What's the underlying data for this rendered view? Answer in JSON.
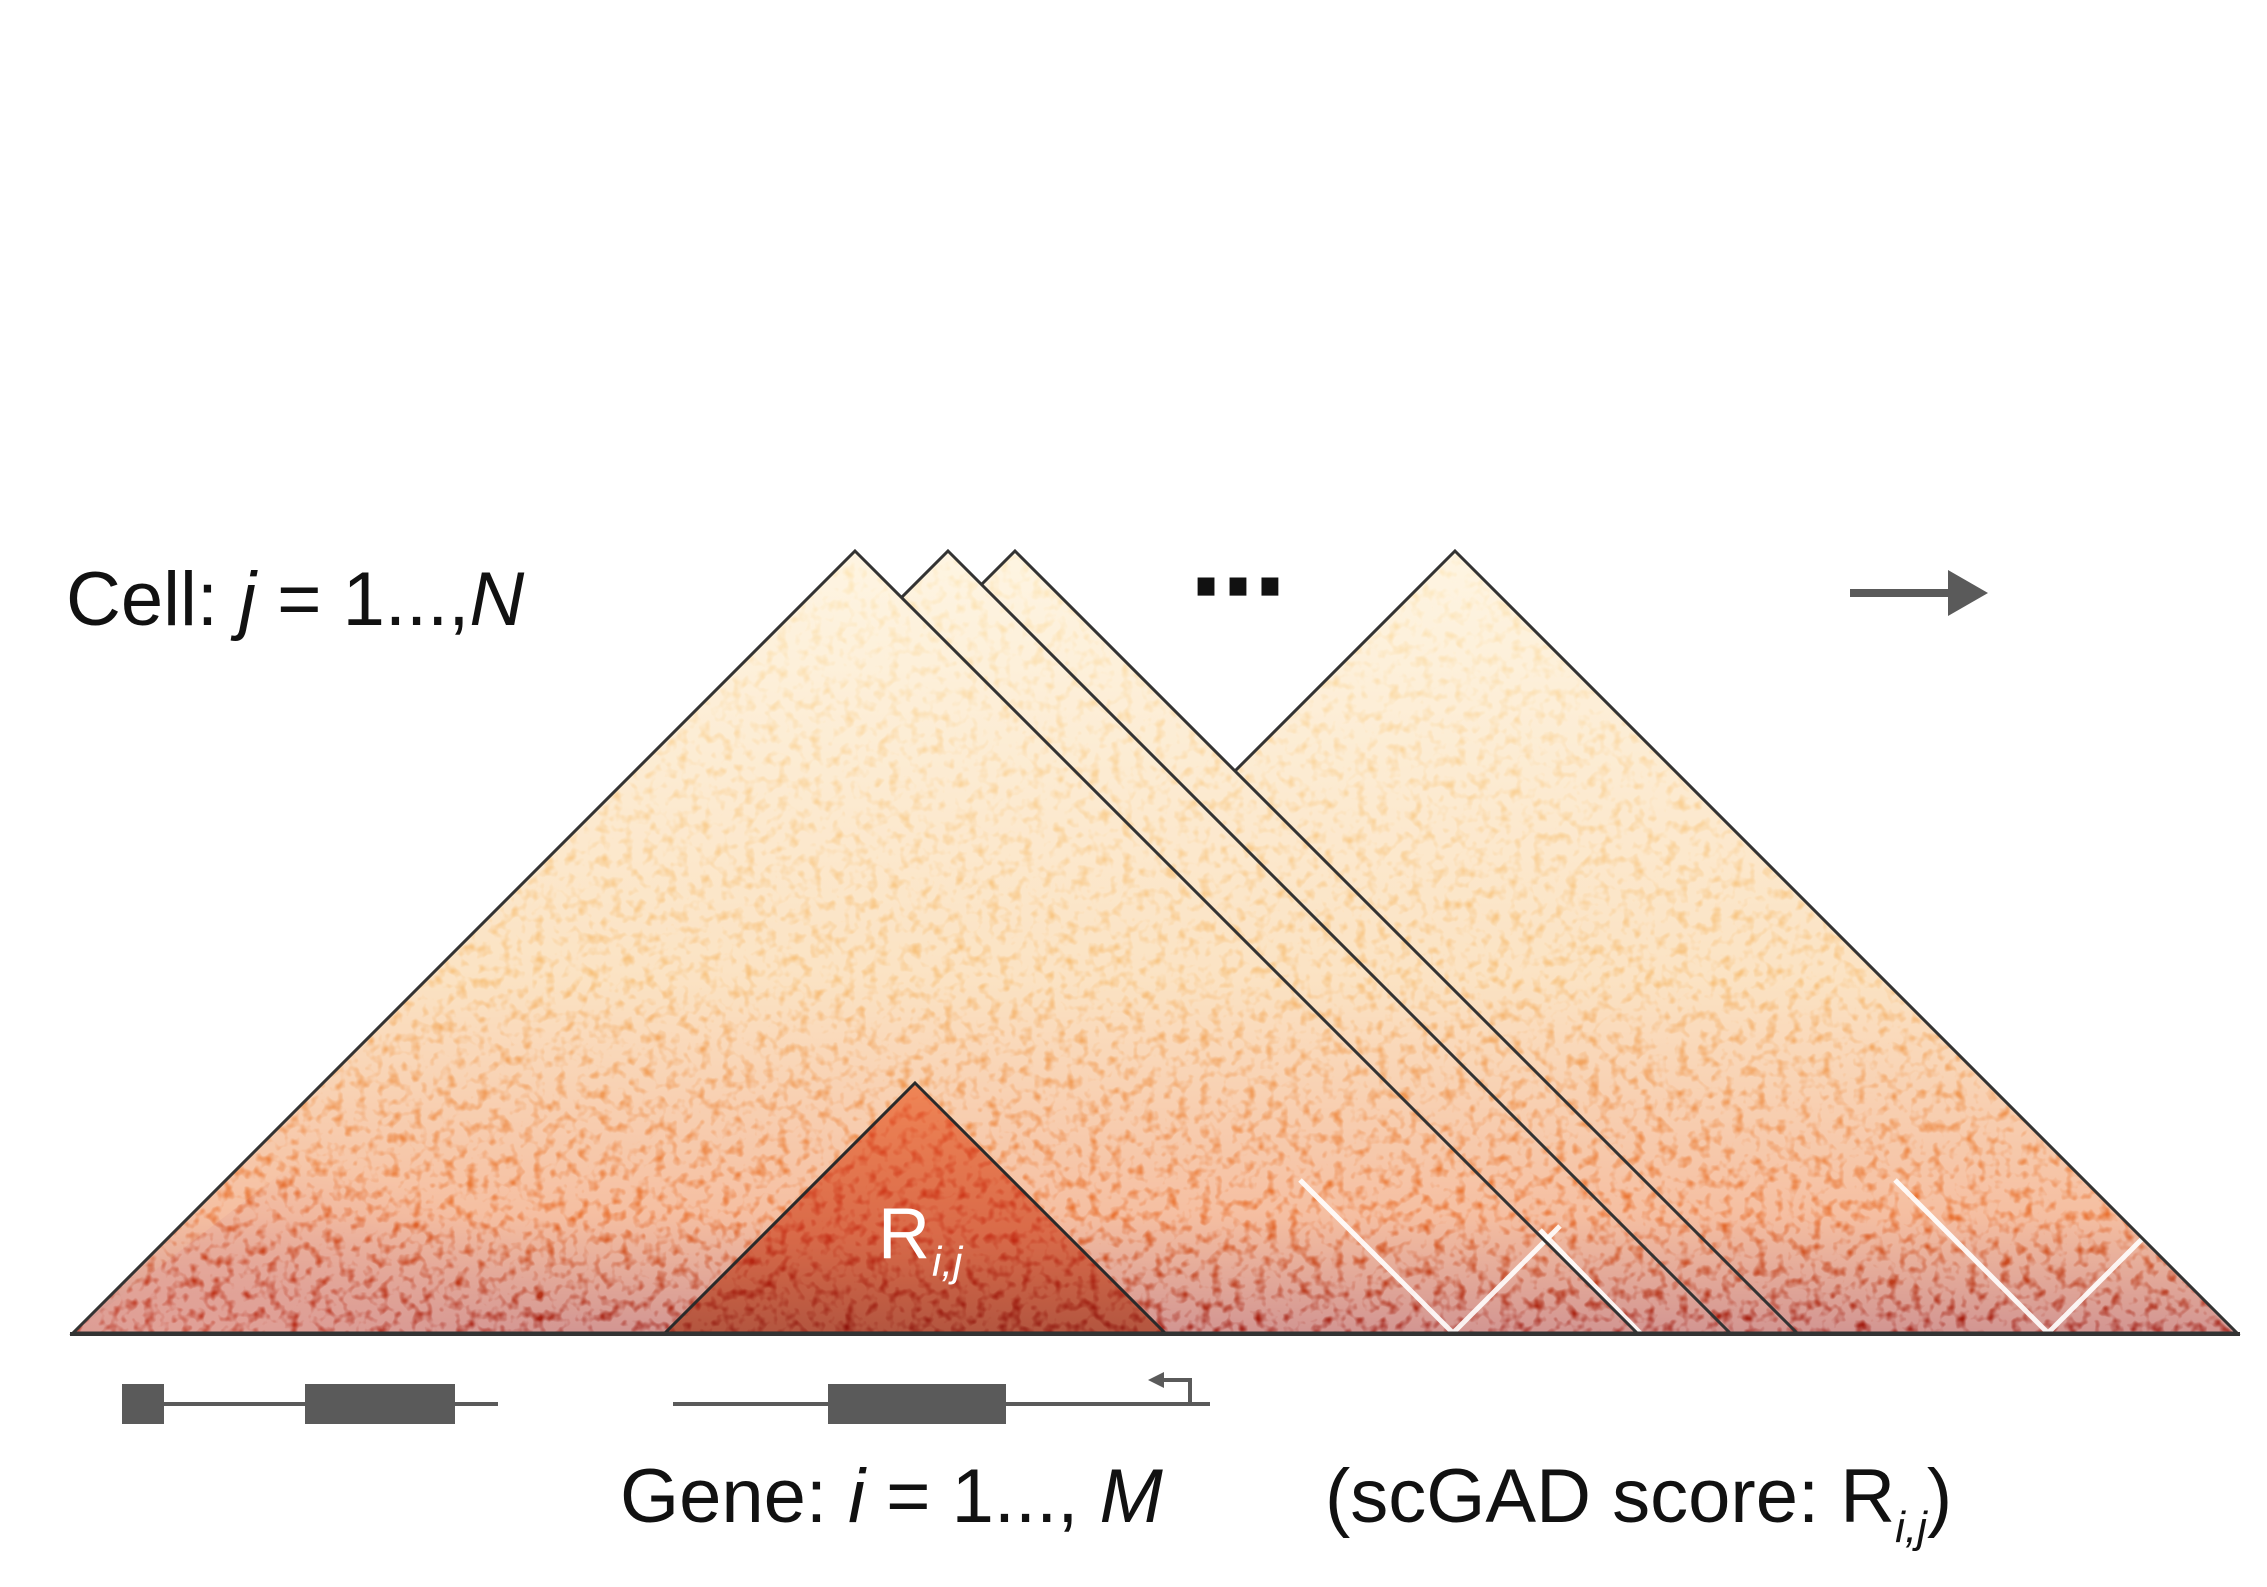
{
  "cell_label": {
    "prefix": "Cell: ",
    "var": "j",
    "middle": " = 1...,",
    "end": "N"
  },
  "ellipsis": "⋯",
  "arrow_icon": "right-arrow-icon",
  "region_label": {
    "main": "R",
    "sub": "i,j"
  },
  "gene_label": {
    "prefix": "Gene: ",
    "var": "i",
    "middle": " = 1..., ",
    "end": "M",
    "score_prefix": "(scGAD score: R",
    "score_sub": "i,j",
    "score_suffix": ")"
  },
  "colors": {
    "heat_light": "#fff3d6",
    "heat_mid": "#f6b15c",
    "heat_dark": "#b3200f",
    "outline": "#333333",
    "gene_track": "#5a5a5a",
    "text": "#111111",
    "region_text": "#ffffff"
  }
}
